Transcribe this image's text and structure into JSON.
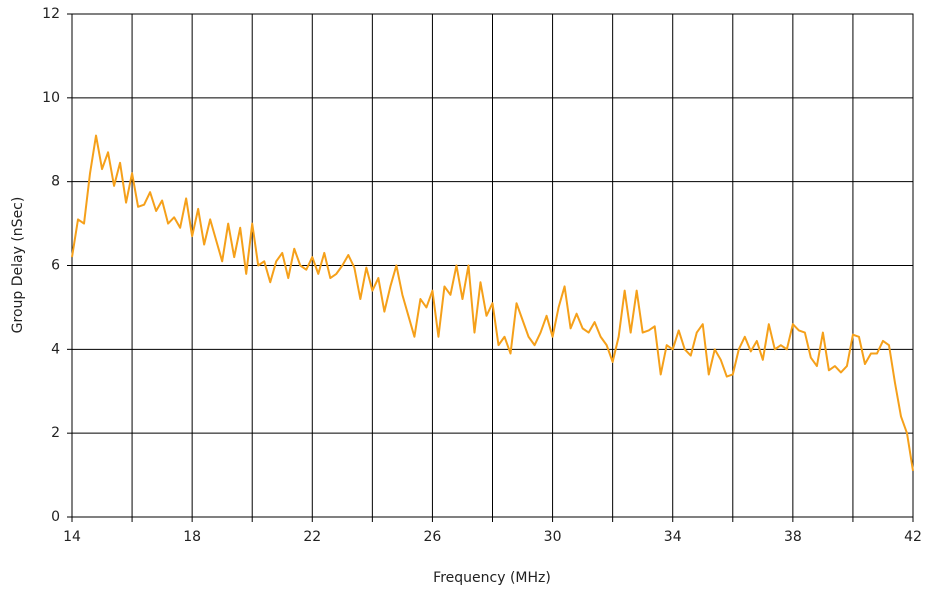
{
  "chart_data": {
    "type": "line",
    "xlabel": "Frequency (MHz)",
    "ylabel": "Group Delay (nSec)",
    "x": [
      14.0,
      14.2,
      14.4,
      14.6,
      14.8,
      15.0,
      15.2,
      15.4,
      15.6,
      15.8,
      16.0,
      16.2,
      16.4,
      16.6,
      16.8,
      17.0,
      17.2,
      17.4,
      17.6,
      17.8,
      18.0,
      18.2,
      18.4,
      18.6,
      18.8,
      19.0,
      19.2,
      19.4,
      19.6,
      19.8,
      20.0,
      20.2,
      20.4,
      20.6,
      20.8,
      21.0,
      21.2,
      21.4,
      21.6,
      21.8,
      22.0,
      22.2,
      22.4,
      22.6,
      22.8,
      23.0,
      23.2,
      23.4,
      23.6,
      23.8,
      24.0,
      24.2,
      24.4,
      24.6,
      24.8,
      25.0,
      25.2,
      25.4,
      25.6,
      25.8,
      26.0,
      26.2,
      26.4,
      26.6,
      26.8,
      27.0,
      27.2,
      27.4,
      27.6,
      27.8,
      28.0,
      28.2,
      28.4,
      28.6,
      28.8,
      29.0,
      29.2,
      29.4,
      29.6,
      29.8,
      30.0,
      30.2,
      30.4,
      30.6,
      30.8,
      31.0,
      31.2,
      31.4,
      31.6,
      31.8,
      32.0,
      32.2,
      32.4,
      32.6,
      32.8,
      33.0,
      33.2,
      33.4,
      33.6,
      33.8,
      34.0,
      34.2,
      34.4,
      34.6,
      34.8,
      35.0,
      35.2,
      35.4,
      35.6,
      35.8,
      36.0,
      36.2,
      36.4,
      36.6,
      36.8,
      37.0,
      37.2,
      37.4,
      37.6,
      37.8,
      38.0,
      38.2,
      38.4,
      38.6,
      38.8,
      39.0,
      39.2,
      39.4,
      39.6,
      39.8,
      40.0,
      40.2,
      40.4,
      40.6,
      40.8,
      41.0,
      41.2,
      41.4,
      41.6,
      41.8,
      42.0
    ],
    "series": [
      {
        "color": "#f5a01a",
        "values": [
          6.2,
          7.1,
          7.0,
          8.2,
          9.1,
          8.3,
          8.7,
          7.9,
          8.45,
          7.5,
          8.2,
          7.4,
          7.45,
          7.75,
          7.3,
          7.55,
          7.0,
          7.15,
          6.9,
          7.6,
          6.7,
          7.35,
          6.5,
          7.1,
          6.6,
          6.1,
          7.0,
          6.2,
          6.9,
          5.8,
          7.0,
          6.0,
          6.1,
          5.6,
          6.1,
          6.3,
          5.7,
          6.4,
          6.0,
          5.9,
          6.2,
          5.8,
          6.3,
          5.7,
          5.8,
          6.0,
          6.25,
          5.95,
          5.2,
          5.95,
          5.4,
          5.7,
          4.9,
          5.5,
          6.0,
          5.3,
          4.8,
          4.3,
          5.2,
          5.0,
          5.4,
          4.3,
          5.5,
          5.3,
          6.0,
          5.2,
          6.0,
          4.4,
          5.6,
          4.8,
          5.1,
          4.1,
          4.3,
          3.9,
          5.1,
          4.7,
          4.3,
          4.1,
          4.4,
          4.8,
          4.3,
          5.0,
          5.5,
          4.5,
          4.85,
          4.5,
          4.4,
          4.65,
          4.3,
          4.1,
          3.7,
          4.3,
          5.4,
          4.4,
          5.4,
          4.4,
          4.45,
          4.55,
          3.4,
          4.1,
          4.0,
          4.45,
          4.0,
          3.85,
          4.4,
          4.6,
          3.4,
          4.0,
          3.75,
          3.35,
          3.4,
          4.0,
          4.3,
          3.95,
          4.2,
          3.75,
          4.6,
          4.0,
          4.1,
          4.0,
          4.6,
          4.45,
          4.4,
          3.8,
          3.6,
          4.4,
          3.5,
          3.6,
          3.45,
          3.6,
          4.35,
          4.3,
          3.65,
          3.9,
          3.9,
          4.2,
          4.1,
          3.2,
          2.4,
          2.0,
          1.1
        ]
      }
    ],
    "xlim": [
      14,
      42
    ],
    "xticks": [
      14,
      18,
      22,
      26,
      30,
      34,
      38,
      42
    ],
    "xgrid": [
      16,
      20,
      24,
      28,
      32,
      36,
      40
    ],
    "ylim": [
      0,
      12
    ],
    "yticks": [
      0,
      2,
      4,
      6,
      8,
      10,
      12
    ],
    "grid": true
  }
}
